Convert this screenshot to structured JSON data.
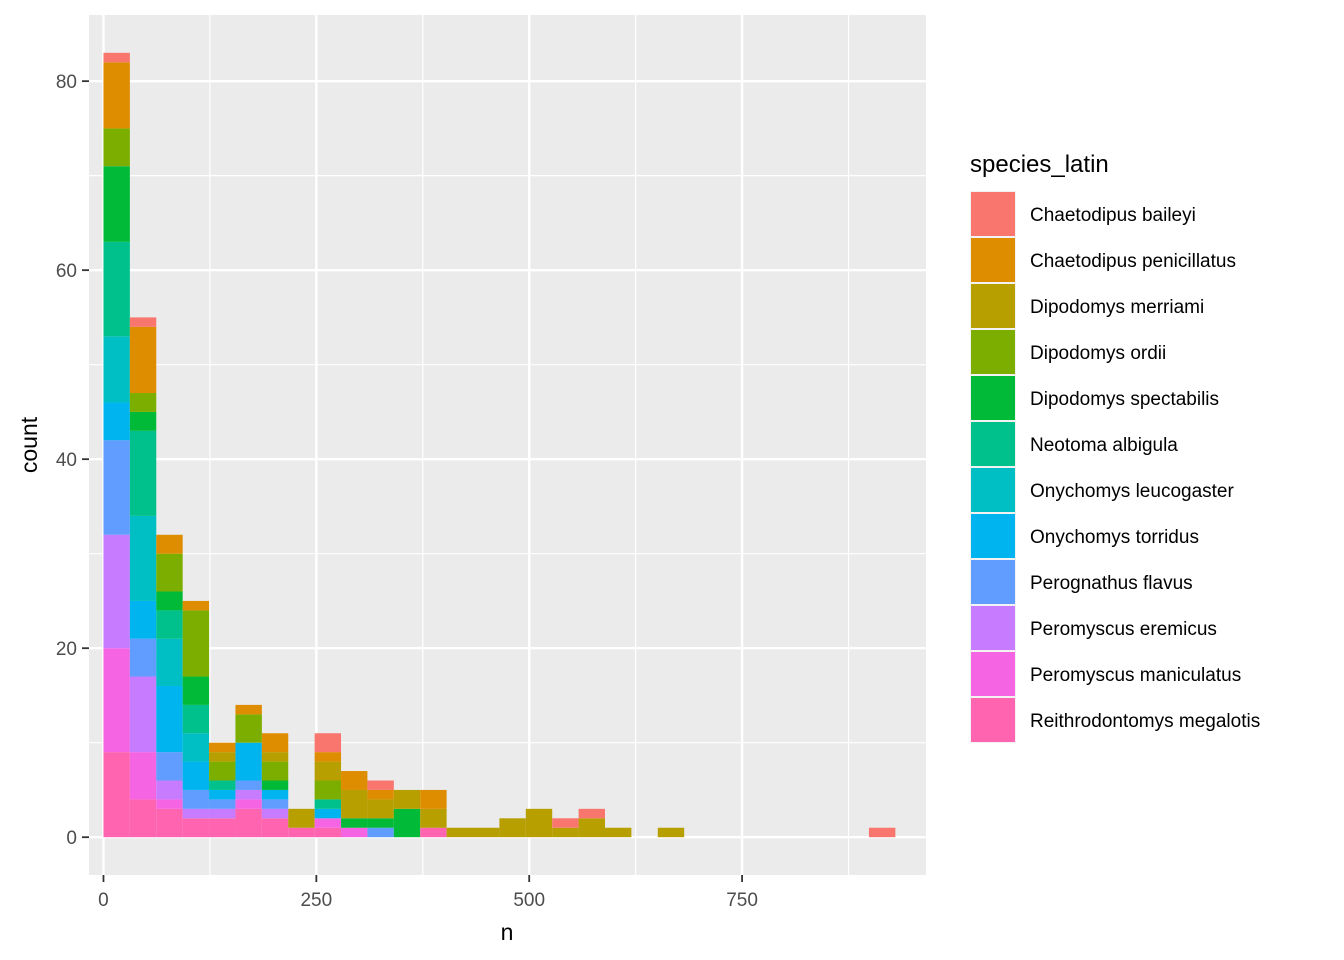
{
  "chart_data": {
    "type": "bar",
    "stacked": true,
    "xlabel": "n",
    "ylabel": "count",
    "xlim": [
      -17,
      966
    ],
    "ylim": [
      -4,
      87
    ],
    "x_ticks": [
      0,
      250,
      500,
      750
    ],
    "y_ticks": [
      0,
      20,
      40,
      60,
      80
    ],
    "grid": true,
    "bin_width": 31,
    "bins_x": [
      15.5,
      46.5,
      77.5,
      108.5,
      139.5,
      170.5,
      201.5,
      232.5,
      263.5,
      294.5,
      325.5,
      356.5,
      387.5,
      418.5,
      449.5,
      480.5,
      511.5,
      542.5,
      573.5,
      604.5,
      635.5,
      666.5,
      697.5,
      728.5,
      759.5,
      790.5,
      821.5,
      852.5,
      883.5,
      914.5
    ],
    "legend": {
      "title": "species_latin",
      "position": "right"
    },
    "series": [
      {
        "name": "Chaetodipus baileyi",
        "color": "#F8766D",
        "values": [
          1,
          1,
          0,
          0,
          0,
          0,
          0,
          0,
          2,
          0,
          1,
          0,
          0,
          0,
          0,
          0,
          0,
          1,
          1,
          0,
          0,
          0,
          0,
          0,
          0,
          0,
          0,
          0,
          0,
          1
        ]
      },
      {
        "name": "Chaetodipus penicillatus",
        "color": "#DE8C00",
        "values": [
          7,
          7,
          2,
          1,
          1,
          1,
          2,
          0,
          1,
          2,
          1,
          0,
          2,
          0,
          0,
          0,
          0,
          0,
          0,
          0,
          0,
          0,
          0,
          0,
          0,
          0,
          0,
          0,
          0,
          0
        ]
      },
      {
        "name": "Dipodomys merriami",
        "color": "#B79F00",
        "values": [
          0,
          0,
          0,
          0,
          1,
          0,
          1,
          2,
          2,
          3,
          2,
          2,
          2,
          1,
          1,
          2,
          3,
          1,
          2,
          1,
          0,
          1,
          0,
          0,
          0,
          0,
          0,
          0,
          0,
          0
        ]
      },
      {
        "name": "Dipodomys ordii",
        "color": "#7CAE00",
        "values": [
          4,
          2,
          4,
          7,
          2,
          3,
          2,
          0,
          2,
          0,
          0,
          0,
          0,
          0,
          0,
          0,
          0,
          0,
          0,
          0,
          0,
          0,
          0,
          0,
          0,
          0,
          0,
          0,
          0,
          0
        ]
      },
      {
        "name": "Dipodomys spectabilis",
        "color": "#00BA38",
        "values": [
          8,
          2,
          2,
          3,
          0,
          0,
          1,
          0,
          0,
          1,
          1,
          3,
          0,
          0,
          0,
          0,
          0,
          0,
          0,
          0,
          0,
          0,
          0,
          0,
          0,
          0,
          0,
          0,
          0,
          0
        ]
      },
      {
        "name": "Neotoma albigula",
        "color": "#00C08B",
        "values": [
          10,
          9,
          3,
          3,
          1,
          0,
          0,
          0,
          1,
          0,
          0,
          0,
          0,
          0,
          0,
          0,
          0,
          0,
          0,
          0,
          0,
          0,
          0,
          0,
          0,
          0,
          0,
          0,
          0,
          0
        ]
      },
      {
        "name": "Onychomys leucogaster",
        "color": "#00BFC4",
        "values": [
          7,
          9,
          5,
          3,
          0,
          0,
          0,
          0,
          0,
          0,
          0,
          0,
          0,
          0,
          0,
          0,
          0,
          0,
          0,
          0,
          0,
          0,
          0,
          0,
          0,
          0,
          0,
          0,
          0,
          0
        ]
      },
      {
        "name": "Onychomys torridus",
        "color": "#00B4F0",
        "values": [
          4,
          4,
          7,
          3,
          1,
          4,
          1,
          0,
          1,
          0,
          0,
          0,
          0,
          0,
          0,
          0,
          0,
          0,
          0,
          0,
          0,
          0,
          0,
          0,
          0,
          0,
          0,
          0,
          0,
          0
        ]
      },
      {
        "name": "Perognathus flavus",
        "color": "#619CFF",
        "values": [
          10,
          4,
          3,
          2,
          1,
          1,
          1,
          0,
          0,
          0,
          1,
          0,
          0,
          0,
          0,
          0,
          0,
          0,
          0,
          0,
          0,
          0,
          0,
          0,
          0,
          0,
          0,
          0,
          0,
          0
        ]
      },
      {
        "name": "Peromyscus eremicus",
        "color": "#C77CFF",
        "values": [
          12,
          8,
          2,
          1,
          1,
          1,
          1,
          0,
          0,
          0,
          0,
          0,
          0,
          0,
          0,
          0,
          0,
          0,
          0,
          0,
          0,
          0,
          0,
          0,
          0,
          0,
          0,
          0,
          0,
          0
        ]
      },
      {
        "name": "Peromyscus maniculatus",
        "color": "#F564E3",
        "values": [
          11,
          5,
          1,
          0,
          0,
          1,
          0,
          0,
          1,
          1,
          0,
          0,
          0,
          0,
          0,
          0,
          0,
          0,
          0,
          0,
          0,
          0,
          0,
          0,
          0,
          0,
          0,
          0,
          0,
          0
        ]
      },
      {
        "name": "Reithrodontomys megalotis",
        "color": "#FF64B0",
        "values": [
          9,
          4,
          3,
          2,
          2,
          3,
          2,
          1,
          1,
          0,
          0,
          0,
          1,
          0,
          0,
          0,
          0,
          0,
          0,
          0,
          0,
          0,
          0,
          0,
          0,
          0,
          0,
          0,
          0,
          0
        ]
      }
    ]
  }
}
